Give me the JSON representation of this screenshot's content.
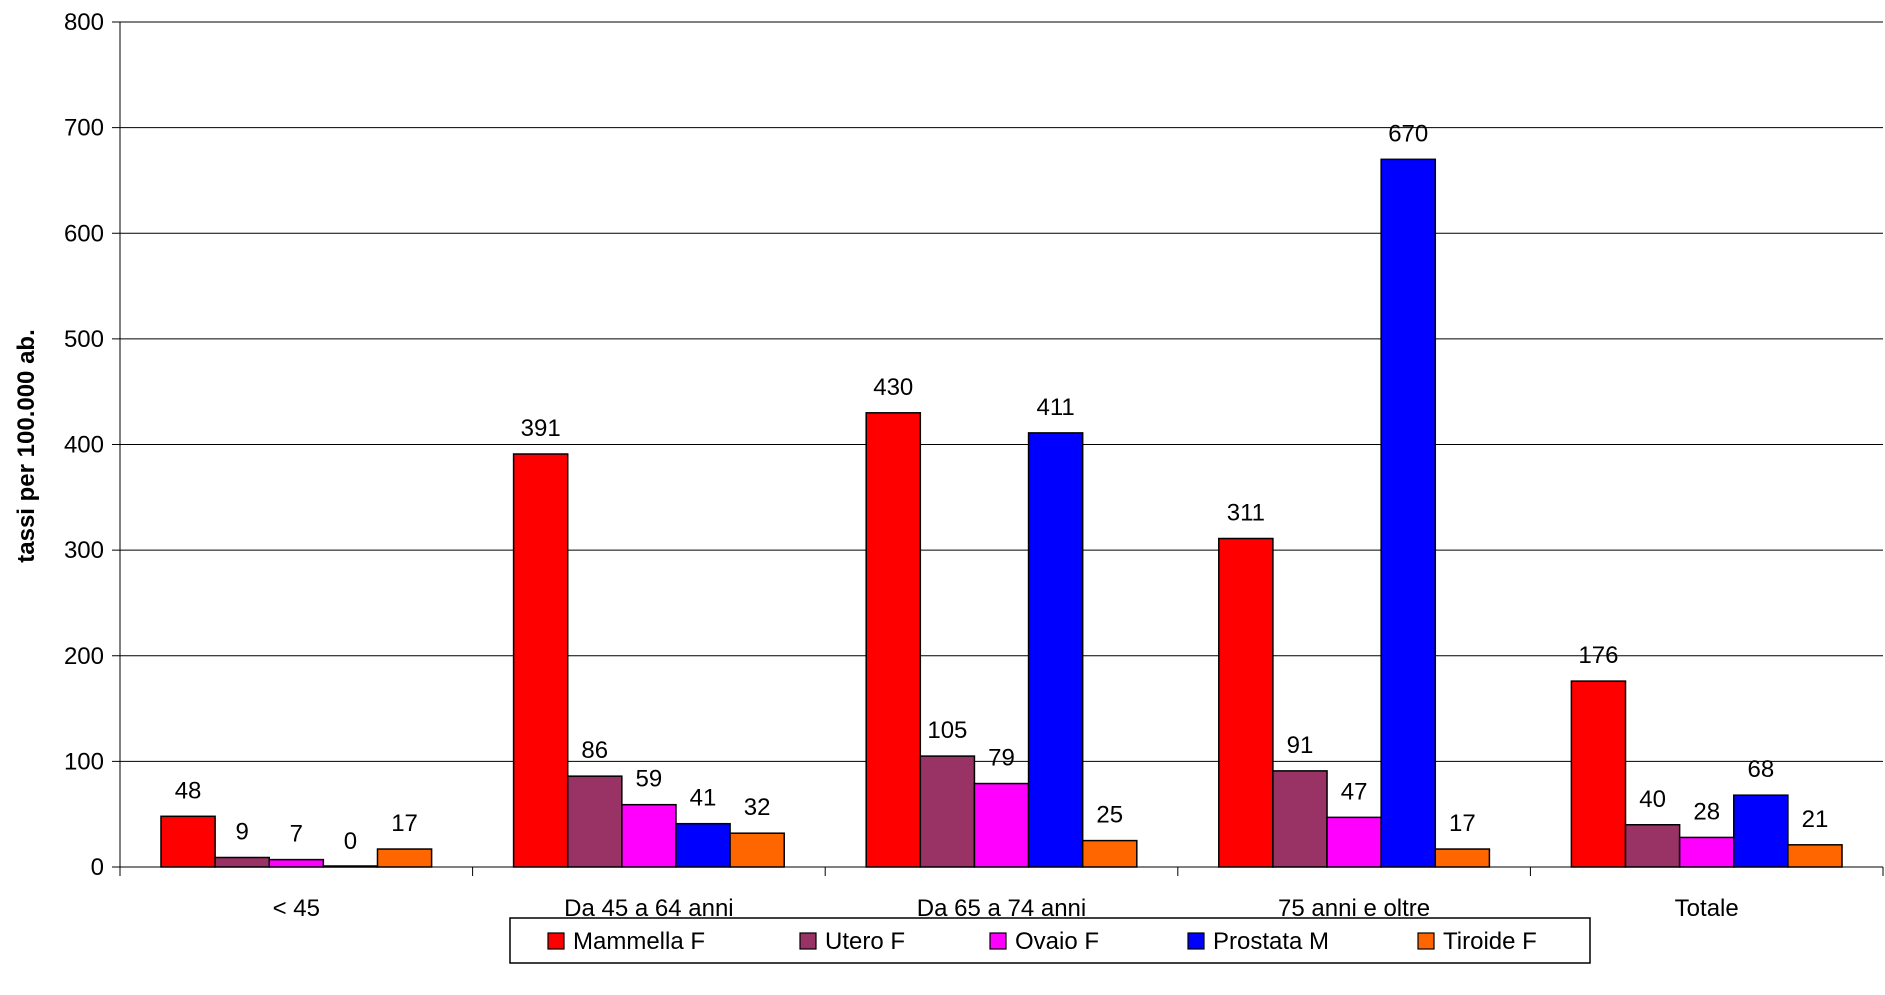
{
  "chart_data": {
    "type": "bar",
    "title": "",
    "xlabel": "",
    "ylabel": "tassi per 100.000 ab.",
    "ylim": [
      0,
      800
    ],
    "yticks": [
      0,
      100,
      200,
      300,
      400,
      500,
      600,
      700,
      800
    ],
    "grid": true,
    "legend_position": "bottom",
    "categories": [
      "< 45",
      "Da 45 a 64 anni",
      "Da 65 a 74 anni",
      "75 anni e oltre",
      "Totale"
    ],
    "series": [
      {
        "name": "Mammella F",
        "color": "#ff0000",
        "values": [
          48,
          391,
          430,
          311,
          176
        ]
      },
      {
        "name": "Utero F",
        "color": "#993366",
        "values": [
          9,
          86,
          105,
          91,
          40
        ]
      },
      {
        "name": "Ovaio F",
        "color": "#ff00ff",
        "values": [
          7,
          59,
          79,
          47,
          28
        ]
      },
      {
        "name": "Prostata M",
        "color": "#0000ff",
        "values": [
          0,
          41,
          411,
          670,
          68
        ]
      },
      {
        "name": "Tiroide F",
        "color": "#ff6600",
        "values": [
          17,
          32,
          25,
          17,
          21
        ]
      }
    ]
  }
}
